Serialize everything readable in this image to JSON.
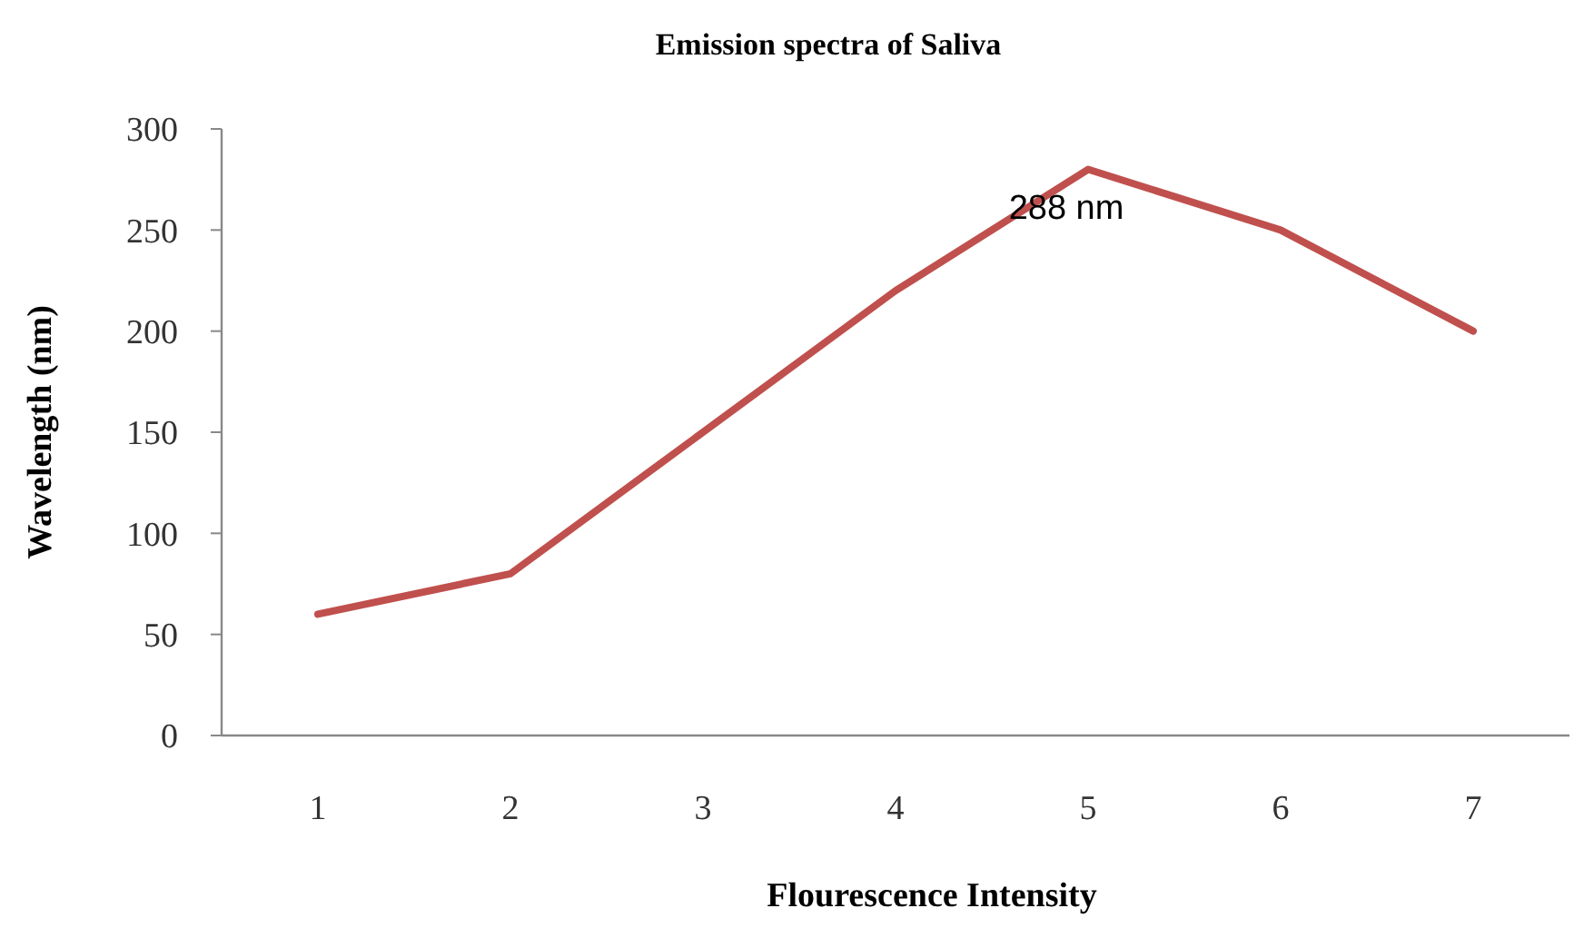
{
  "chart_data": {
    "type": "line",
    "title": "Emission spectra of Saliva",
    "xlabel": "Flourescence Intensity",
    "ylabel": "Wavelength (nm)",
    "categories": [
      "1",
      "2",
      "3",
      "4",
      "5",
      "6",
      "7"
    ],
    "series": [
      {
        "color": "#c0504d",
        "values": [
          60,
          80,
          150,
          220,
          280,
          250,
          200
        ]
      }
    ],
    "ylim": [
      0,
      300
    ],
    "yticks": [
      0,
      50,
      100,
      150,
      200,
      250,
      300
    ],
    "annotations": [
      {
        "text": "288 nm",
        "x": "5",
        "y": 280
      }
    ],
    "grid": false,
    "line_style": "solid",
    "marker": "none"
  }
}
